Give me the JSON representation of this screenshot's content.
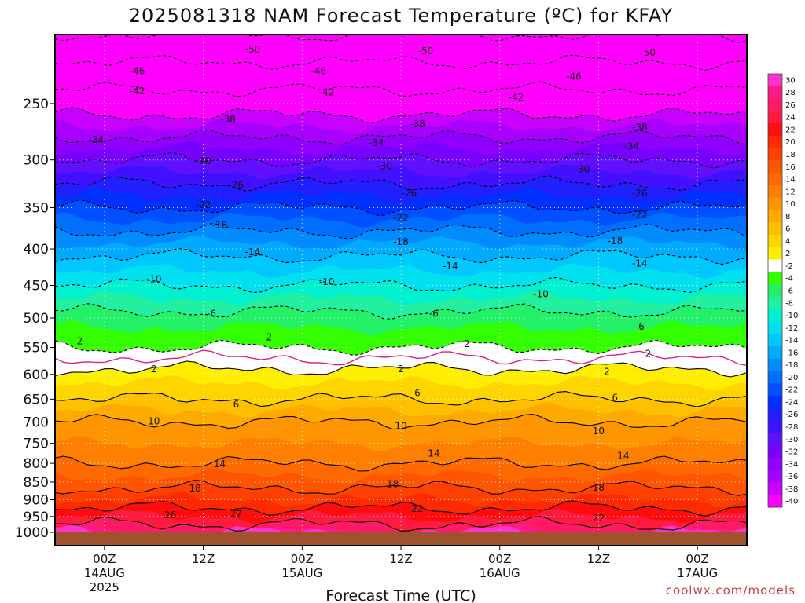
{
  "chart_data": {
    "type": "heatmap",
    "title": "2025081318 NAM Forecast Temperature (ºC) for KFAY",
    "xlabel": "Forecast Time (UTC)",
    "ylabel": "",
    "credit": "coolwx.com/models",
    "y_axis": {
      "scale": "log",
      "range": [
        1000,
        200
      ],
      "unit": "hPa",
      "ticks": [
        250,
        300,
        350,
        400,
        450,
        500,
        550,
        600,
        650,
        700,
        750,
        800,
        850,
        900,
        950,
        1000
      ]
    },
    "x_axis": {
      "range_hours": [
        0,
        84
      ],
      "ticks": [
        {
          "hour": 6,
          "line1": "00Z",
          "line2": "14AUG",
          "line3": "2025"
        },
        {
          "hour": 18,
          "line1": "12Z",
          "line2": "",
          "line3": ""
        },
        {
          "hour": 30,
          "line1": "00Z",
          "line2": "15AUG",
          "line3": ""
        },
        {
          "hour": 42,
          "line1": "12Z",
          "line2": "",
          "line3": ""
        },
        {
          "hour": 54,
          "line1": "00Z",
          "line2": "16AUG",
          "line3": ""
        },
        {
          "hour": 66,
          "line1": "12Z",
          "line2": "",
          "line3": ""
        },
        {
          "hour": 78,
          "line1": "00Z",
          "line2": "17AUG",
          "line3": ""
        }
      ]
    },
    "colorbar": {
      "unit": "°C",
      "levels": [
        30,
        28,
        26,
        24,
        22,
        20,
        18,
        16,
        14,
        12,
        10,
        8,
        6,
        4,
        2,
        -2,
        -4,
        -6,
        -8,
        -10,
        -12,
        -14,
        -16,
        -18,
        -20,
        -22,
        -24,
        -26,
        -28,
        -30,
        -32,
        -34,
        -36,
        -38,
        -40
      ],
      "colors": [
        "#ff33cc",
        "#ff1a8c",
        "#ff1a66",
        "#ff1a40",
        "#ff0d0d",
        "#ff2a00",
        "#ff4000",
        "#ff5500",
        "#ff6a00",
        "#ff8000",
        "#ff9500",
        "#ffaa00",
        "#ffc000",
        "#ffd500",
        "#ffee00",
        "#ffffff",
        "#33ff00",
        "#22f066",
        "#22f0a0",
        "#00f0d0",
        "#00e0ee",
        "#00c8ff",
        "#00aaff",
        "#008cff",
        "#006eff",
        "#0050ff",
        "#0030ff",
        "#2020ff",
        "#4010ff",
        "#6010ff",
        "#7800ff",
        "#9000ff",
        "#a800ff",
        "#c800ff",
        "#ff00ff"
      ]
    },
    "temperature_profile_initial": [
      {
        "pressure": 1000,
        "temp": 28
      },
      {
        "pressure": 950,
        "temp": 24
      },
      {
        "pressure": 900,
        "temp": 20
      },
      {
        "pressure": 850,
        "temp": 17
      },
      {
        "pressure": 800,
        "temp": 14
      },
      {
        "pressure": 750,
        "temp": 12
      },
      {
        "pressure": 700,
        "temp": 10
      },
      {
        "pressure": 650,
        "temp": 6
      },
      {
        "pressure": 600,
        "temp": 3
      },
      {
        "pressure": 550,
        "temp": -2
      },
      {
        "pressure": 500,
        "temp": -5
      },
      {
        "pressure": 450,
        "temp": -10
      },
      {
        "pressure": 400,
        "temp": -15
      },
      {
        "pressure": 350,
        "temp": -22
      },
      {
        "pressure": 300,
        "temp": -30
      },
      {
        "pressure": 250,
        "temp": -40
      },
      {
        "pressure": 200,
        "temp": -50
      }
    ],
    "contour_labels": [
      {
        "text": "-50",
        "hour": 24,
        "pressure": 210
      },
      {
        "text": "-50",
        "hour": 45,
        "pressure": 211
      },
      {
        "text": "-50",
        "hour": 72,
        "pressure": 212
      },
      {
        "text": "-46",
        "hour": 10,
        "pressure": 225
      },
      {
        "text": "-46",
        "hour": 32,
        "pressure": 225
      },
      {
        "text": "-46",
        "hour": 63,
        "pressure": 229
      },
      {
        "text": "-42",
        "hour": 10,
        "pressure": 240
      },
      {
        "text": "-42",
        "hour": 33,
        "pressure": 241
      },
      {
        "text": "-42",
        "hour": 56,
        "pressure": 245
      },
      {
        "text": "-38",
        "hour": 21,
        "pressure": 263
      },
      {
        "text": "-38",
        "hour": 44,
        "pressure": 267
      },
      {
        "text": "-38",
        "hour": 71,
        "pressure": 270
      },
      {
        "text": "-34",
        "hour": 5,
        "pressure": 281
      },
      {
        "text": "-34",
        "hour": 39,
        "pressure": 284
      },
      {
        "text": "-34",
        "hour": 70,
        "pressure": 287
      },
      {
        "text": "-30",
        "hour": 18,
        "pressure": 301
      },
      {
        "text": "-30",
        "hour": 40,
        "pressure": 306
      },
      {
        "text": "-30",
        "hour": 64,
        "pressure": 309
      },
      {
        "text": "-26",
        "hour": 22,
        "pressure": 325
      },
      {
        "text": "-26",
        "hour": 43,
        "pressure": 334
      },
      {
        "text": "-26",
        "hour": 71,
        "pressure": 334
      },
      {
        "text": "-22",
        "hour": 18,
        "pressure": 347
      },
      {
        "text": "-22",
        "hour": 42,
        "pressure": 362
      },
      {
        "text": "-22",
        "hour": 71,
        "pressure": 358
      },
      {
        "text": "-18",
        "hour": 20,
        "pressure": 370
      },
      {
        "text": "-18",
        "hour": 42,
        "pressure": 391
      },
      {
        "text": "-18",
        "hour": 68,
        "pressure": 390
      },
      {
        "text": "-14",
        "hour": 24,
        "pressure": 404
      },
      {
        "text": "-14",
        "hour": 48,
        "pressure": 423
      },
      {
        "text": "-14",
        "hour": 71,
        "pressure": 419
      },
      {
        "text": "-10",
        "hour": 12,
        "pressure": 441
      },
      {
        "text": "-10",
        "hour": 33,
        "pressure": 445
      },
      {
        "text": "-10",
        "hour": 59,
        "pressure": 463
      },
      {
        "text": "-6",
        "hour": 19,
        "pressure": 493
      },
      {
        "text": "-6",
        "hour": 46,
        "pressure": 493
      },
      {
        "text": "-6",
        "hour": 71,
        "pressure": 514
      },
      {
        "text": "2",
        "hour": 3,
        "pressure": 539
      },
      {
        "text": "2",
        "hour": 26,
        "pressure": 532
      },
      {
        "text": "2",
        "hour": 50,
        "pressure": 544
      },
      {
        "text": "2",
        "hour": 72,
        "pressure": 561
      },
      {
        "text": "2",
        "hour": 12,
        "pressure": 590
      },
      {
        "text": "2",
        "hour": 42,
        "pressure": 590
      },
      {
        "text": "2",
        "hour": 67,
        "pressure": 595
      },
      {
        "text": "6",
        "hour": 22,
        "pressure": 661
      },
      {
        "text": "6",
        "hour": 44,
        "pressure": 637
      },
      {
        "text": "6",
        "hour": 68,
        "pressure": 647
      },
      {
        "text": "10",
        "hour": 12,
        "pressure": 698
      },
      {
        "text": "10",
        "hour": 42,
        "pressure": 709
      },
      {
        "text": "10",
        "hour": 66,
        "pressure": 721
      },
      {
        "text": "14",
        "hour": 20,
        "pressure": 802
      },
      {
        "text": "14",
        "hour": 46,
        "pressure": 775
      },
      {
        "text": "14",
        "hour": 69,
        "pressure": 781
      },
      {
        "text": "18",
        "hour": 17,
        "pressure": 867
      },
      {
        "text": "18",
        "hour": 41,
        "pressure": 855
      },
      {
        "text": "18",
        "hour": 66,
        "pressure": 865
      },
      {
        "text": "26",
        "hour": 14,
        "pressure": 946
      },
      {
        "text": "22",
        "hour": 22,
        "pressure": 942
      },
      {
        "text": "22",
        "hour": 44,
        "pressure": 927
      },
      {
        "text": "22",
        "hour": 66,
        "pressure": 955
      }
    ]
  }
}
